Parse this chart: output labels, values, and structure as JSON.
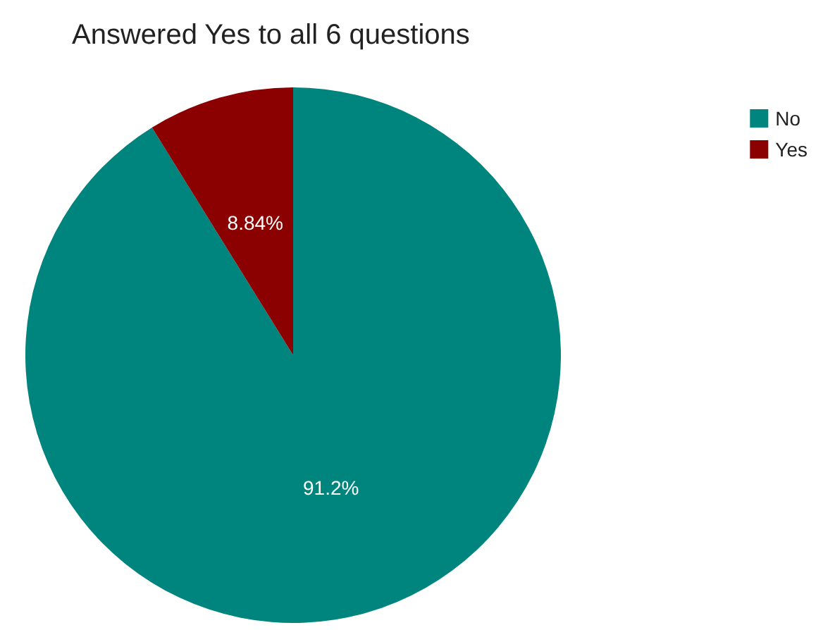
{
  "chart_data": {
    "type": "pie",
    "title": "Answered Yes to all 6 questions",
    "categories": [
      "No",
      "Yes"
    ],
    "values": [
      91.2,
      8.84
    ],
    "colors": [
      "#00847e",
      "#8b0000"
    ],
    "value_labels": [
      "91.2%",
      "8.84%"
    ],
    "legend": "top right"
  }
}
